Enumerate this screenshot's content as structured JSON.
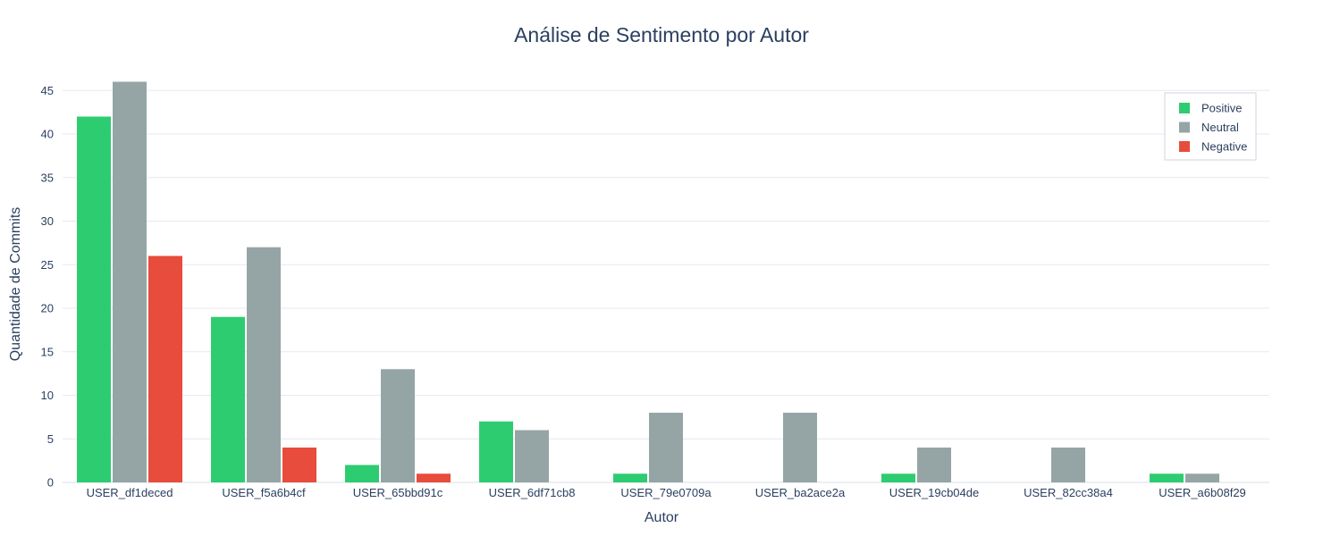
{
  "chart_data": {
    "type": "bar",
    "title": "Análise de Sentimento por Autor",
    "xlabel": "Autor",
    "ylabel": "Quantidade de Commits",
    "ylim": [
      0,
      48
    ],
    "yticks": [
      0,
      5,
      10,
      15,
      20,
      25,
      30,
      35,
      40,
      45
    ],
    "grid": true,
    "legend_position": "top-right",
    "categories": [
      "USER_df1deced",
      "USER_f5a6b4cf",
      "USER_65bbd91c",
      "USER_6df71cb8",
      "USER_79e0709a",
      "USER_ba2ace2a",
      "USER_19cb04de",
      "USER_82cc38a4",
      "USER_a6b08f29"
    ],
    "series": [
      {
        "name": "Positive",
        "color": "#2ecc71",
        "values": [
          42,
          19,
          2,
          7,
          1,
          0,
          1,
          0,
          1
        ]
      },
      {
        "name": "Neutral",
        "color": "#95a5a6",
        "values": [
          46,
          27,
          13,
          6,
          8,
          8,
          4,
          4,
          1
        ]
      },
      {
        "name": "Negative",
        "color": "#e74c3c",
        "values": [
          26,
          4,
          1,
          0,
          0,
          0,
          0,
          0,
          0
        ]
      }
    ]
  }
}
